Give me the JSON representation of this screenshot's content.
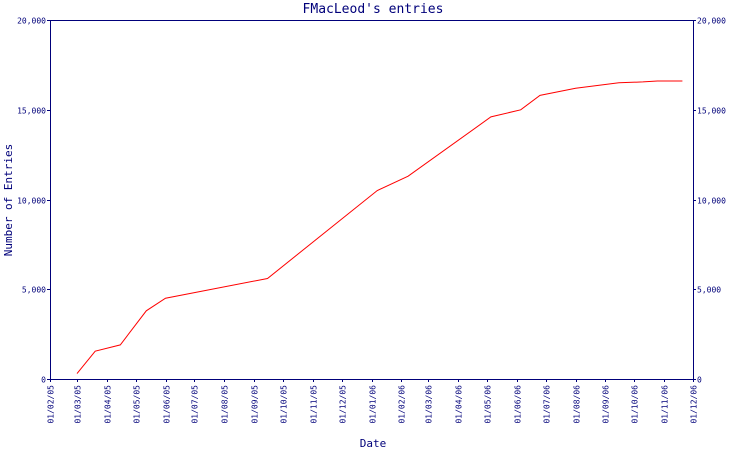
{
  "chart_data": {
    "type": "line",
    "title": "FMacLeod's entries",
    "xlabel": "Date",
    "ylabel": "Number of Entries",
    "ylim": [
      0,
      20000
    ],
    "y_ticks": [
      0,
      5000,
      10000,
      15000,
      20000
    ],
    "y_tick_labels": [
      "0",
      "5,000",
      "10,000",
      "15,000",
      "20,000"
    ],
    "x_ticks": [
      "01/02/05",
      "01/03/05",
      "01/04/05",
      "01/05/05",
      "01/06/05",
      "01/07/05",
      "01/08/05",
      "01/09/05",
      "01/10/05",
      "01/11/05",
      "01/12/05",
      "01/01/06",
      "01/02/06",
      "01/03/06",
      "01/04/06",
      "01/05/06",
      "01/06/06",
      "01/07/06",
      "01/08/06",
      "01/09/06",
      "01/10/06",
      "01/11/06",
      "01/12/06"
    ],
    "xlim": [
      "2005-02-01",
      "2006-12-01"
    ],
    "grid": false,
    "colors": {
      "axis": "#00007a",
      "series": "#ff0000",
      "background": "#ffffff"
    },
    "series": [
      {
        "points": [
          {
            "x": "2005-03-01",
            "y": 300
          },
          {
            "x": "2005-03-20",
            "y": 1550
          },
          {
            "x": "2005-04-15",
            "y": 1900
          },
          {
            "x": "2005-05-12",
            "y": 3800
          },
          {
            "x": "2005-06-01",
            "y": 4500
          },
          {
            "x": "2005-09-15",
            "y": 5600
          },
          {
            "x": "2006-01-07",
            "y": 10500
          },
          {
            "x": "2006-02-08",
            "y": 11300
          },
          {
            "x": "2006-05-05",
            "y": 14600
          },
          {
            "x": "2006-06-05",
            "y": 15000
          },
          {
            "x": "2006-06-25",
            "y": 15800
          },
          {
            "x": "2006-08-01",
            "y": 16200
          },
          {
            "x": "2006-09-15",
            "y": 16500
          },
          {
            "x": "2006-10-10",
            "y": 16550
          },
          {
            "x": "2006-10-25",
            "y": 16600
          },
          {
            "x": "2006-11-20",
            "y": 16600
          }
        ]
      }
    ]
  }
}
